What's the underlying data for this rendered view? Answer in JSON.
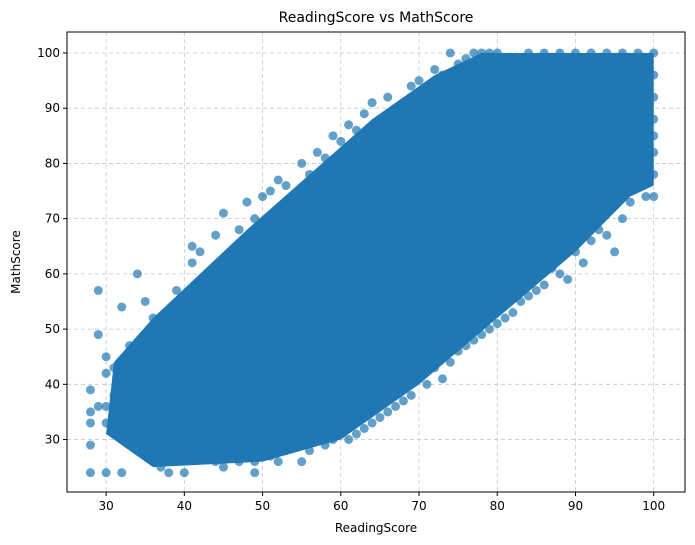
{
  "chart_data": {
    "type": "scatter",
    "title": "ReadingScore vs MathScore",
    "xlabel": "ReadingScore",
    "ylabel": "MathScore",
    "xlim": [
      25,
      104
    ],
    "ylim": [
      20.5,
      103.8
    ],
    "xticks": [
      30,
      40,
      50,
      60,
      70,
      80,
      90,
      100
    ],
    "yticks": [
      30,
      40,
      50,
      60,
      70,
      80,
      90,
      100
    ],
    "grid": true,
    "color": "#1f77b4",
    "alpha": 0.7,
    "series": [
      {
        "points": [
          [
            28,
            24
          ],
          [
            30,
            24
          ],
          [
            32,
            24
          ],
          [
            28,
            29
          ],
          [
            29,
            57
          ],
          [
            29,
            49
          ],
          [
            28,
            39
          ],
          [
            30,
            42
          ],
          [
            28,
            35
          ],
          [
            28,
            33
          ],
          [
            30,
            45
          ],
          [
            29,
            36
          ],
          [
            30,
            33
          ],
          [
            32,
            31
          ],
          [
            31,
            43
          ],
          [
            32,
            54
          ],
          [
            34,
            60
          ],
          [
            33,
            47
          ],
          [
            35,
            55
          ],
          [
            36,
            52
          ],
          [
            34,
            44
          ],
          [
            33,
            38
          ],
          [
            35,
            28
          ],
          [
            36,
            26
          ],
          [
            37,
            25
          ],
          [
            38,
            24
          ],
          [
            40,
            24
          ],
          [
            42,
            27
          ],
          [
            44,
            26
          ],
          [
            45,
            25
          ],
          [
            47,
            26
          ],
          [
            49,
            24
          ],
          [
            49,
            26
          ],
          [
            52,
            26
          ],
          [
            55,
            26
          ],
          [
            39,
            57
          ],
          [
            41,
            62
          ],
          [
            41,
            65
          ],
          [
            42,
            64
          ],
          [
            44,
            67
          ],
          [
            45,
            71
          ],
          [
            47,
            68
          ],
          [
            48,
            73
          ],
          [
            49,
            70
          ],
          [
            50,
            74
          ],
          [
            51,
            75
          ],
          [
            52,
            77
          ],
          [
            53,
            76
          ],
          [
            55,
            80
          ],
          [
            56,
            78
          ],
          [
            57,
            82
          ],
          [
            58,
            81
          ],
          [
            59,
            85
          ],
          [
            60,
            84
          ],
          [
            61,
            87
          ],
          [
            62,
            86
          ],
          [
            63,
            89
          ],
          [
            64,
            91
          ],
          [
            65,
            88
          ],
          [
            66,
            92
          ],
          [
            67,
            90
          ],
          [
            68,
            91
          ],
          [
            69,
            94
          ],
          [
            70,
            95
          ],
          [
            71,
            94
          ],
          [
            72,
            97
          ],
          [
            73,
            96
          ],
          [
            74,
            100
          ],
          [
            75,
            98
          ],
          [
            76,
            99
          ],
          [
            77,
            100
          ],
          [
            78,
            100
          ],
          [
            79,
            100
          ],
          [
            80,
            100
          ],
          [
            100,
            74
          ],
          [
            99,
            74
          ],
          [
            100,
            78
          ],
          [
            99,
            80
          ],
          [
            100,
            82
          ],
          [
            98,
            76
          ],
          [
            97,
            73
          ],
          [
            96,
            70
          ],
          [
            95,
            64
          ],
          [
            94,
            67
          ],
          [
            93,
            68
          ],
          [
            92,
            66
          ],
          [
            91,
            62
          ],
          [
            90,
            64
          ],
          [
            89,
            59
          ],
          [
            88,
            60
          ],
          [
            87,
            61
          ],
          [
            86,
            58
          ],
          [
            85,
            57
          ],
          [
            84,
            56
          ],
          [
            83,
            55
          ],
          [
            82,
            53
          ],
          [
            81,
            52
          ],
          [
            80,
            51
          ],
          [
            79,
            50
          ],
          [
            78,
            49
          ],
          [
            77,
            48
          ],
          [
            76,
            47
          ],
          [
            75,
            46
          ],
          [
            74,
            44
          ],
          [
            73,
            41
          ],
          [
            72,
            43
          ],
          [
            71,
            40
          ],
          [
            70,
            41
          ],
          [
            69,
            38
          ],
          [
            68,
            37
          ],
          [
            67,
            36
          ],
          [
            66,
            35
          ],
          [
            65,
            34
          ],
          [
            64,
            33
          ],
          [
            63,
            32
          ],
          [
            62,
            31
          ],
          [
            61,
            30
          ],
          [
            60,
            31
          ],
          [
            59,
            30
          ],
          [
            58,
            29
          ],
          [
            57,
            30
          ],
          [
            56,
            28
          ],
          [
            55,
            29
          ],
          [
            54,
            30
          ],
          [
            53,
            28
          ],
          [
            52,
            29
          ],
          [
            51,
            27
          ],
          [
            50,
            28
          ],
          [
            48,
            29
          ],
          [
            46,
            28
          ],
          [
            44,
            29
          ],
          [
            42,
            30
          ],
          [
            40,
            29
          ],
          [
            38,
            28
          ],
          [
            36,
            30
          ],
          [
            34,
            31
          ],
          [
            32,
            33
          ],
          [
            30,
            36
          ],
          [
            31,
            38
          ],
          [
            32,
            40
          ],
          [
            33,
            42
          ],
          [
            35,
            45
          ],
          [
            36,
            48
          ],
          [
            37,
            50
          ],
          [
            38,
            52
          ],
          [
            40,
            55
          ],
          [
            42,
            58
          ],
          [
            44,
            60
          ],
          [
            46,
            63
          ],
          [
            48,
            65
          ],
          [
            50,
            67
          ],
          [
            52,
            69
          ],
          [
            54,
            71
          ],
          [
            56,
            73
          ],
          [
            58,
            75
          ],
          [
            60,
            78
          ],
          [
            62,
            80
          ],
          [
            64,
            82
          ],
          [
            66,
            84
          ],
          [
            68,
            86
          ],
          [
            70,
            88
          ],
          [
            72,
            90
          ],
          [
            74,
            92
          ],
          [
            76,
            94
          ],
          [
            78,
            96
          ],
          [
            80,
            98
          ],
          [
            82,
            99
          ],
          [
            84,
            100
          ],
          [
            86,
            100
          ],
          [
            88,
            100
          ],
          [
            90,
            100
          ],
          [
            92,
            100
          ],
          [
            94,
            100
          ],
          [
            96,
            100
          ],
          [
            98,
            100
          ],
          [
            100,
            100
          ],
          [
            100,
            96
          ],
          [
            100,
            92
          ],
          [
            100,
            88
          ],
          [
            100,
            85
          ],
          [
            45,
            45
          ],
          [
            50,
            50
          ],
          [
            55,
            55
          ],
          [
            60,
            60
          ],
          [
            65,
            65
          ],
          [
            70,
            70
          ],
          [
            75,
            75
          ],
          [
            80,
            80
          ],
          [
            85,
            85
          ],
          [
            90,
            90
          ],
          [
            95,
            95
          ],
          [
            40,
            40
          ],
          [
            35,
            36
          ],
          [
            45,
            38
          ],
          [
            50,
            42
          ],
          [
            55,
            46
          ],
          [
            60,
            50
          ],
          [
            65,
            55
          ],
          [
            70,
            60
          ],
          [
            75,
            65
          ],
          [
            80,
            70
          ],
          [
            85,
            75
          ],
          [
            90,
            80
          ],
          [
            95,
            85
          ],
          [
            50,
            58
          ],
          [
            55,
            62
          ],
          [
            60,
            66
          ],
          [
            65,
            72
          ],
          [
            70,
            76
          ],
          [
            75,
            82
          ],
          [
            80,
            86
          ],
          [
            85,
            90
          ],
          [
            90,
            94
          ],
          [
            95,
            97
          ]
        ]
      }
    ]
  }
}
